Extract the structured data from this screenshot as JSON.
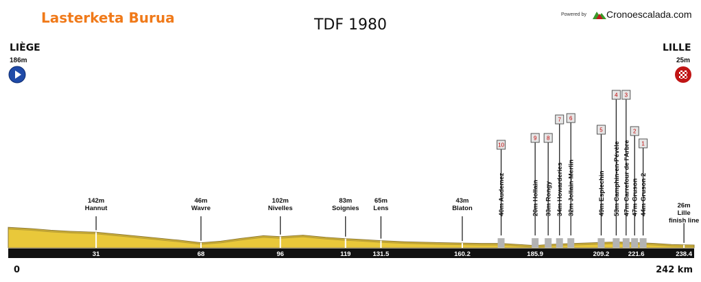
{
  "brand": "Lasterketa Burua",
  "title": "TDF 1980",
  "powered_by": "Powered by",
  "site": "Cronoescalada.com",
  "colors": {
    "brand": "#f07a1a",
    "terrain": "#e9c83a",
    "terrain_dark": "#8a7530",
    "axis": "#111111",
    "cobble": "#b3b3b3"
  },
  "start": {
    "name": "LIÈGE",
    "altitude": "186m",
    "icon": "play-icon"
  },
  "finish": {
    "name": "LILLE",
    "altitude": "25m",
    "icon": "checkered-flag-icon"
  },
  "chart_data": {
    "type": "area",
    "title": "TDF 1980",
    "xlabel": "",
    "ylabel": "",
    "xlim": [
      0,
      242
    ],
    "x_unit": "km",
    "axis_start_label": "0",
    "axis_end_label": "242 km",
    "elevation_profile": {
      "x": [
        0,
        8,
        15,
        22,
        31,
        40,
        50,
        60,
        68,
        75,
        82,
        90,
        96,
        104,
        112,
        119,
        125,
        131.5,
        140,
        150,
        160.2,
        167,
        173.9,
        180,
        185.9,
        192,
        200,
        209.2,
        215,
        221.6,
        228,
        234,
        238.4,
        242
      ],
      "y": [
        186,
        175,
        160,
        150,
        142,
        120,
        95,
        70,
        46,
        60,
        85,
        110,
        102,
        115,
        95,
        83,
        75,
        65,
        55,
        48,
        43,
        40,
        40,
        30,
        20,
        32,
        40,
        49,
        53,
        47,
        40,
        30,
        26,
        25
      ]
    },
    "places": [
      {
        "km": "31",
        "name": "Hannut",
        "altitude": "142m"
      },
      {
        "km": "68",
        "name": "Wavre",
        "altitude": "46m"
      },
      {
        "km": "96",
        "name": "Nivelles",
        "altitude": "102m"
      },
      {
        "km": "119",
        "name": "Soignies",
        "altitude": "83m"
      },
      {
        "km": "131.5",
        "name": "Lens",
        "altitude": "65m"
      },
      {
        "km": "160.2",
        "name": "Blaton",
        "altitude": "43m"
      },
      {
        "km": "238.4",
        "name": "Lille",
        "name2": "finish line",
        "altitude": "26m"
      }
    ],
    "extra_ticks": [
      "185.9",
      "209.2",
      "221.6"
    ],
    "sectors": [
      {
        "num": "10",
        "km": 173.9,
        "label": "40m   Audemez"
      },
      {
        "num": "9",
        "km": 185.9,
        "label": "20m   Hollain"
      },
      {
        "num": "8",
        "km": 190.5,
        "label": "33m   Rongy"
      },
      {
        "num": "7",
        "km": 194.5,
        "label": "34m   Howarderies"
      },
      {
        "num": "6",
        "km": 198.5,
        "label": "32m   Jollain-Merlin"
      },
      {
        "num": "5",
        "km": 209.2,
        "label": "49m   Esplechin"
      },
      {
        "num": "4",
        "km": 214.5,
        "label": "53m   Camphin-en-Pévèle"
      },
      {
        "num": "3",
        "km": 218.0,
        "label": "47m   Carrefour de l'Arbre"
      },
      {
        "num": "2",
        "km": 221.0,
        "label": "47m   Gruson"
      },
      {
        "num": "1",
        "km": 224.0,
        "label": "44m   Gruson 2"
      }
    ]
  }
}
